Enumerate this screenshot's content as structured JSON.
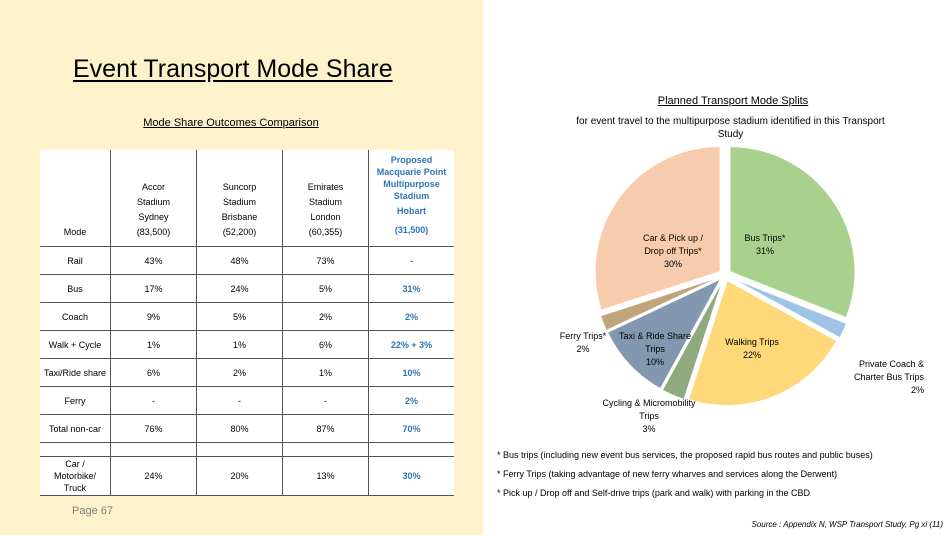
{
  "slide": {
    "title": "Event Transport Mode Share",
    "page": "Page 67"
  },
  "table": {
    "title": "Mode Share Outcomes Comparison",
    "header": {
      "mode": "Mode",
      "columns": [
        {
          "lines": [
            "Accor",
            "Stadium",
            "Sydney"
          ],
          "capacity": "(83,500)"
        },
        {
          "lines": [
            "Suncorp",
            "Stadium",
            "Brisbane"
          ],
          "capacity": "(52,200)"
        },
        {
          "lines": [
            "Emirates",
            "Stadium",
            "London"
          ],
          "capacity": "(60,355)"
        },
        {
          "lines": [
            "Proposed",
            "Macquarie Point",
            "Multipurpose",
            "Stadium",
            "Hobart"
          ],
          "capacity": "(31,500)"
        }
      ]
    },
    "rows": [
      {
        "mode": "Rail",
        "values": [
          "43%",
          "48%",
          "73%",
          "-"
        ]
      },
      {
        "mode": "Bus",
        "values": [
          "17%",
          "24%",
          "5%",
          "31%"
        ]
      },
      {
        "mode": "Coach",
        "values": [
          "9%",
          "5%",
          "2%",
          "2%"
        ]
      },
      {
        "mode": "Walk + Cycle",
        "values": [
          "1%",
          "1%",
          "6%",
          "22% + 3%"
        ]
      },
      {
        "mode": "Taxi/Ride share",
        "values": [
          "6%",
          "2%",
          "1%",
          "10%"
        ]
      },
      {
        "mode": "Ferry",
        "values": [
          "-",
          "-",
          "-",
          "2%"
        ]
      },
      {
        "mode": "Total non-car",
        "values": [
          "76%",
          "80%",
          "87%",
          "70%"
        ]
      }
    ],
    "car_row": {
      "mode_lines": [
        "Car /",
        "Motorbike/",
        "Truck"
      ],
      "values": [
        "24%",
        "20%",
        "13%",
        "30%"
      ]
    }
  },
  "chart_data": {
    "type": "pie",
    "title": "Planned Transport Mode Splits",
    "subtitle": "for event travel to the multipurpose stadium identified in this Transport Study",
    "slices": [
      {
        "label": "Bus Trips*",
        "value": 31,
        "value_label": "31%",
        "color": "#a9d18e"
      },
      {
        "label": "Private Coach & Charter Bus Trips",
        "value": 2,
        "value_label": "2%",
        "color": "#9dc3e6"
      },
      {
        "label": "Walking Trips",
        "value": 22,
        "value_label": "22%",
        "color": "#ffd87a"
      },
      {
        "label": "Cycling & Micromobility Trips",
        "value": 3,
        "value_label": "3%",
        "color": "#8faa7e"
      },
      {
        "label": "Taxi & Ride Share Trips",
        "value": 10,
        "value_label": "10%",
        "color": "#8497b0"
      },
      {
        "label": "Ferry Trips*",
        "value": 2,
        "value_label": "2%",
        "color": "#bfa57a"
      },
      {
        "label": "Car & Pick up / Drop off Trips*",
        "value": 30,
        "value_label": "30%",
        "color": "#f8cbad"
      }
    ]
  },
  "footnotes": [
    "* Bus trips (including new event bus services, the proposed rapid bus routes and public buses)",
    "* Ferry Trips (taking advantage of new ferry wharves and services along the Derwent)",
    "* Pick up / Drop off and Self-drive trips (park and walk) with parking in the CBD"
  ],
  "source": "Source : Appendix N, WSP Transport Study, Pg xi (11)"
}
